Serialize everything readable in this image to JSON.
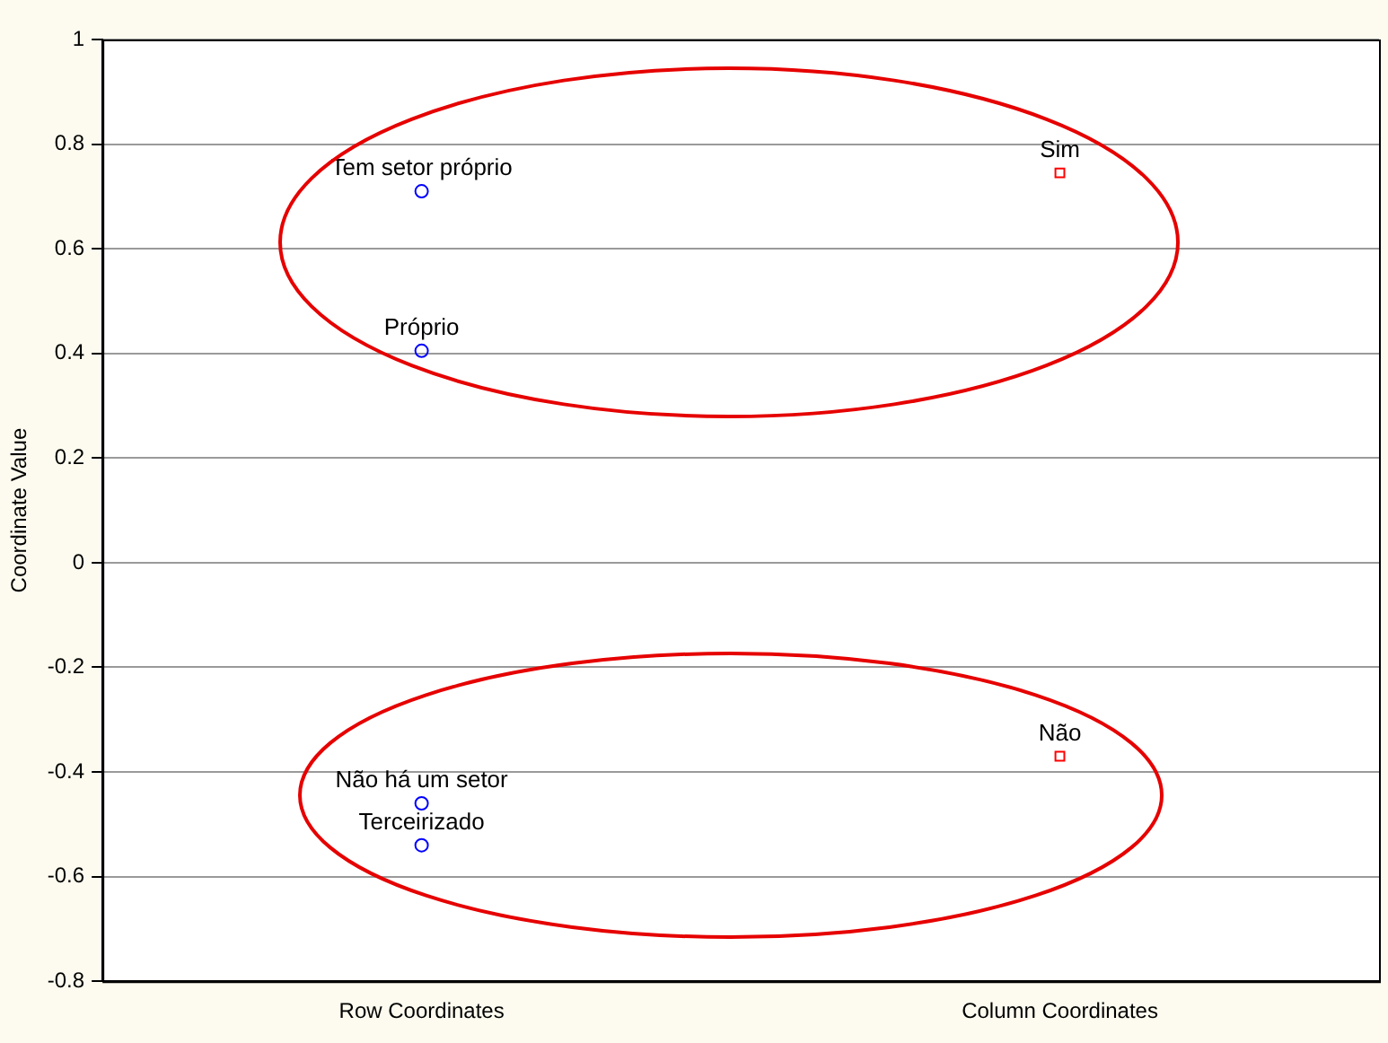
{
  "chart_data": {
    "type": "scatter",
    "ylabel": "Coordinate Value",
    "categories": [
      "Row Coordinates",
      "Column Coordinates"
    ],
    "series": [
      {
        "color": "#0000ff",
        "marker": "circle",
        "x": [
          "Row Coordinates",
          "Row Coordinates",
          "Row Coordinates",
          "Row Coordinates"
        ],
        "values": [
          0.71,
          0.405,
          -0.46,
          -0.54
        ]
      },
      {
        "color": "#ff0000",
        "marker": "square",
        "x": [
          "Column Coordinates",
          "Column Coordinates"
        ],
        "values": [
          0.745,
          -0.37
        ]
      }
    ],
    "ylim": [
      -0.8,
      1
    ],
    "yticks": [
      -0.8,
      -0.6,
      -0.4,
      -0.2,
      0,
      0.2,
      0.4,
      0.6,
      0.8,
      1
    ],
    "grid": "y",
    "legend": false,
    "annotations": [
      {
        "text": "Tem setor próprio",
        "x": "Row Coordinates",
        "y": 0.71
      },
      {
        "text": "Próprio",
        "x": "Row Coordinates",
        "y": 0.405
      },
      {
        "text": "Não há um setor",
        "x": "Row Coordinates",
        "y": -0.46
      },
      {
        "text": "Terceirizado",
        "x": "Row Coordinates",
        "y": -0.54
      },
      {
        "text": "Sim",
        "x": "Column Coordinates",
        "y": 0.745
      },
      {
        "text": "Não",
        "x": "Column Coordinates",
        "y": -0.37
      }
    ]
  }
}
